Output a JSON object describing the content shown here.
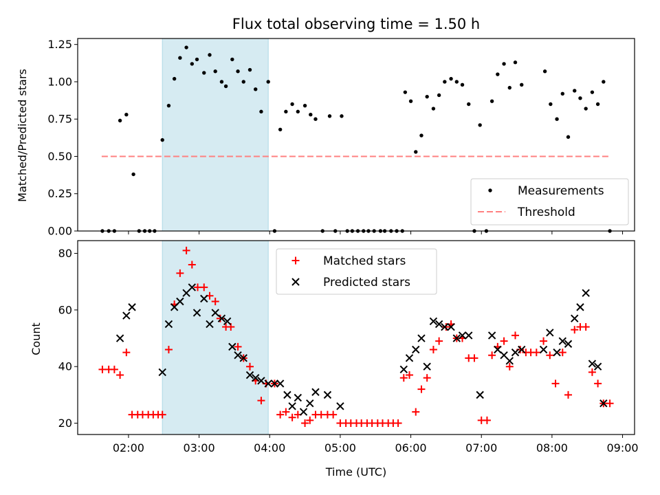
{
  "chart_data": [
    {
      "type": "scatter",
      "title": "Flux total observing time = 1.50 h",
      "xlabel": "",
      "ylabel": "Matched/Predicted stars",
      "xlim": [
        1.28,
        9.17
      ],
      "ylim": [
        0,
        1.29
      ],
      "yticks": [
        0,
        0.25,
        0.5,
        0.75,
        1.0,
        1.25
      ],
      "ytick_labels": [
        "0.00",
        "0.25",
        "0.50",
        "0.75",
        "1.00",
        "1.25"
      ],
      "xticks": [
        2,
        3,
        4,
        5,
        6,
        7,
        8,
        9
      ],
      "highlight_band": [
        2.48,
        3.98
      ],
      "legend": {
        "placement": "lower-right",
        "entries": [
          "Measurements",
          "Threshold"
        ]
      },
      "threshold": {
        "name": "Threshold",
        "value": 0.5,
        "x": [
          1.62,
          8.82
        ],
        "color": "#ff8080"
      },
      "series": [
        {
          "name": "Measurements",
          "color": "#000000",
          "points": [
            [
              1.63,
              0
            ],
            [
              1.72,
              0
            ],
            [
              1.8,
              0
            ],
            [
              1.88,
              0.74
            ],
            [
              1.97,
              0.78
            ],
            [
              2.07,
              0.38
            ],
            [
              2.15,
              0
            ],
            [
              2.23,
              0
            ],
            [
              2.3,
              0
            ],
            [
              2.37,
              0
            ],
            [
              2.48,
              0.61
            ],
            [
              2.57,
              0.84
            ],
            [
              2.65,
              1.02
            ],
            [
              2.73,
              1.16
            ],
            [
              2.82,
              1.23
            ],
            [
              2.9,
              1.12
            ],
            [
              2.97,
              1.15
            ],
            [
              3.07,
              1.06
            ],
            [
              3.15,
              1.18
            ],
            [
              3.23,
              1.07
            ],
            [
              3.32,
              1.0
            ],
            [
              3.38,
              0.97
            ],
            [
              3.47,
              1.15
            ],
            [
              3.55,
              1.07
            ],
            [
              3.63,
              1.0
            ],
            [
              3.72,
              1.08
            ],
            [
              3.8,
              0.95
            ],
            [
              3.88,
              0.8
            ],
            [
              3.98,
              1.0
            ],
            [
              4.07,
              0
            ],
            [
              4.15,
              0.68
            ],
            [
              4.23,
              0.8
            ],
            [
              4.32,
              0.85
            ],
            [
              4.4,
              0.8
            ],
            [
              4.5,
              0.84
            ],
            [
              4.58,
              0.78
            ],
            [
              4.65,
              0.75
            ],
            [
              4.75,
              0
            ],
            [
              4.85,
              0.77
            ],
            [
              4.93,
              0
            ],
            [
              5.02,
              0.77
            ],
            [
              5.1,
              0
            ],
            [
              5.17,
              0
            ],
            [
              5.25,
              0
            ],
            [
              5.33,
              0
            ],
            [
              5.4,
              0
            ],
            [
              5.48,
              0
            ],
            [
              5.57,
              0
            ],
            [
              5.63,
              0
            ],
            [
              5.72,
              0
            ],
            [
              5.8,
              0
            ],
            [
              5.88,
              0
            ],
            [
              5.92,
              0.93
            ],
            [
              6.0,
              0.87
            ],
            [
              6.07,
              0.53
            ],
            [
              6.15,
              0.64
            ],
            [
              6.23,
              0.9
            ],
            [
              6.32,
              0.82
            ],
            [
              6.4,
              0.91
            ],
            [
              6.48,
              1.0
            ],
            [
              6.57,
              1.02
            ],
            [
              6.65,
              1.0
            ],
            [
              6.73,
              0.98
            ],
            [
              6.82,
              0.85
            ],
            [
              6.9,
              0
            ],
            [
              6.98,
              0.71
            ],
            [
              7.07,
              0
            ],
            [
              7.15,
              0.87
            ],
            [
              7.23,
              1.05
            ],
            [
              7.32,
              1.12
            ],
            [
              7.4,
              0.96
            ],
            [
              7.48,
              1.13
            ],
            [
              7.57,
              0.98
            ],
            [
              7.9,
              1.07
            ],
            [
              7.98,
              0.85
            ],
            [
              8.07,
              0.75
            ],
            [
              8.15,
              0.92
            ],
            [
              8.23,
              0.63
            ],
            [
              8.32,
              0.94
            ],
            [
              8.4,
              0.89
            ],
            [
              8.48,
              0.82
            ],
            [
              8.57,
              0.93
            ],
            [
              8.65,
              0.85
            ],
            [
              8.73,
              1.0
            ],
            [
              8.82,
              0
            ]
          ]
        }
      ]
    },
    {
      "type": "scatter",
      "title": "",
      "xlabel": "Time (UTC)",
      "ylabel": "Count",
      "xlim": [
        1.28,
        9.17
      ],
      "ylim": [
        16,
        84.5
      ],
      "yticks": [
        20,
        40,
        60,
        80
      ],
      "ytick_labels": [
        "20",
        "40",
        "60",
        "80"
      ],
      "xticks": [
        2,
        3,
        4,
        5,
        6,
        7,
        8,
        9
      ],
      "xtick_labels": [
        "02:00",
        "03:00",
        "04:00",
        "05:00",
        "06:00",
        "07:00",
        "08:00",
        "09:00"
      ],
      "highlight_band": [
        2.48,
        3.98
      ],
      "legend": {
        "placement": "top-center",
        "entries": [
          "Matched stars",
          "Predicted stars"
        ]
      },
      "series": [
        {
          "name": "Matched stars",
          "marker": "plus",
          "color": "#ff0000",
          "points": [
            [
              1.63,
              39
            ],
            [
              1.72,
              39
            ],
            [
              1.8,
              39
            ],
            [
              1.88,
              37
            ],
            [
              1.97,
              45
            ],
            [
              2.05,
              23
            ],
            [
              2.13,
              23
            ],
            [
              2.2,
              23
            ],
            [
              2.28,
              23
            ],
            [
              2.35,
              23
            ],
            [
              2.42,
              23
            ],
            [
              2.48,
              23
            ],
            [
              2.57,
              46
            ],
            [
              2.65,
              62
            ],
            [
              2.73,
              73
            ],
            [
              2.82,
              81
            ],
            [
              2.9,
              76
            ],
            [
              2.98,
              68
            ],
            [
              3.07,
              68
            ],
            [
              3.15,
              65
            ],
            [
              3.23,
              63
            ],
            [
              3.3,
              57
            ],
            [
              3.38,
              54
            ],
            [
              3.45,
              54
            ],
            [
              3.55,
              47
            ],
            [
              3.63,
              43
            ],
            [
              3.72,
              40
            ],
            [
              3.8,
              35
            ],
            [
              3.88,
              28
            ],
            [
              3.95,
              34
            ],
            [
              4.07,
              34
            ],
            [
              4.15,
              23
            ],
            [
              4.23,
              24
            ],
            [
              4.32,
              22
            ],
            [
              4.4,
              23
            ],
            [
              4.5,
              20
            ],
            [
              4.57,
              21
            ],
            [
              4.65,
              23
            ],
            [
              4.73,
              23
            ],
            [
              4.82,
              23
            ],
            [
              4.9,
              23
            ],
            [
              5.0,
              20
            ],
            [
              5.08,
              20
            ],
            [
              5.15,
              20
            ],
            [
              5.23,
              20
            ],
            [
              5.3,
              20
            ],
            [
              5.38,
              20
            ],
            [
              5.45,
              20
            ],
            [
              5.53,
              20
            ],
            [
              5.6,
              20
            ],
            [
              5.68,
              20
            ],
            [
              5.75,
              20
            ],
            [
              5.82,
              20
            ],
            [
              5.9,
              36
            ],
            [
              5.98,
              37
            ],
            [
              6.07,
              24
            ],
            [
              6.15,
              32
            ],
            [
              6.23,
              36
            ],
            [
              6.32,
              46
            ],
            [
              6.4,
              49
            ],
            [
              6.5,
              54
            ],
            [
              6.57,
              55
            ],
            [
              6.65,
              50
            ],
            [
              6.73,
              50
            ],
            [
              6.82,
              43
            ],
            [
              6.9,
              43
            ],
            [
              7.0,
              21
            ],
            [
              7.08,
              21
            ],
            [
              7.15,
              44
            ],
            [
              7.23,
              47
            ],
            [
              7.32,
              49
            ],
            [
              7.4,
              40
            ],
            [
              7.48,
              51
            ],
            [
              7.55,
              46
            ],
            [
              7.63,
              45
            ],
            [
              7.7,
              45
            ],
            [
              7.78,
              45
            ],
            [
              7.88,
              49
            ],
            [
              7.97,
              44
            ],
            [
              8.05,
              34
            ],
            [
              8.15,
              45
            ],
            [
              8.23,
              30
            ],
            [
              8.32,
              53
            ],
            [
              8.4,
              54
            ],
            [
              8.48,
              54
            ],
            [
              8.57,
              38
            ],
            [
              8.65,
              34
            ],
            [
              8.73,
              27
            ],
            [
              8.82,
              27
            ]
          ]
        },
        {
          "name": "Predicted stars",
          "marker": "x",
          "color": "#000000",
          "points": [
            [
              1.88,
              50
            ],
            [
              1.97,
              58
            ],
            [
              2.05,
              61
            ],
            [
              2.48,
              38
            ],
            [
              2.57,
              55
            ],
            [
              2.65,
              61
            ],
            [
              2.73,
              63
            ],
            [
              2.82,
              66
            ],
            [
              2.9,
              68
            ],
            [
              2.97,
              59
            ],
            [
              3.07,
              64
            ],
            [
              3.15,
              55
            ],
            [
              3.23,
              59
            ],
            [
              3.32,
              57
            ],
            [
              3.4,
              56
            ],
            [
              3.47,
              47
            ],
            [
              3.55,
              44
            ],
            [
              3.63,
              43
            ],
            [
              3.72,
              37
            ],
            [
              3.8,
              36
            ],
            [
              3.88,
              35
            ],
            [
              3.98,
              34
            ],
            [
              4.07,
              34
            ],
            [
              4.15,
              34
            ],
            [
              4.25,
              30
            ],
            [
              4.32,
              26
            ],
            [
              4.4,
              29
            ],
            [
              4.48,
              24
            ],
            [
              4.57,
              27
            ],
            [
              4.65,
              31
            ],
            [
              4.82,
              30
            ],
            [
              5.0,
              26
            ],
            [
              5.9,
              39
            ],
            [
              5.98,
              43
            ],
            [
              6.07,
              46
            ],
            [
              6.15,
              50
            ],
            [
              6.23,
              40
            ],
            [
              6.32,
              56
            ],
            [
              6.4,
              55
            ],
            [
              6.48,
              54
            ],
            [
              6.57,
              54
            ],
            [
              6.65,
              50
            ],
            [
              6.73,
              51
            ],
            [
              6.82,
              51
            ],
            [
              6.98,
              30
            ],
            [
              7.15,
              51
            ],
            [
              7.23,
              46
            ],
            [
              7.32,
              44
            ],
            [
              7.4,
              42
            ],
            [
              7.48,
              45
            ],
            [
              7.57,
              46
            ],
            [
              7.88,
              46
            ],
            [
              7.97,
              52
            ],
            [
              8.07,
              45
            ],
            [
              8.15,
              49
            ],
            [
              8.23,
              48
            ],
            [
              8.32,
              57
            ],
            [
              8.4,
              61
            ],
            [
              8.48,
              66
            ],
            [
              8.57,
              41
            ],
            [
              8.65,
              40
            ],
            [
              8.73,
              27
            ]
          ]
        }
      ]
    }
  ]
}
